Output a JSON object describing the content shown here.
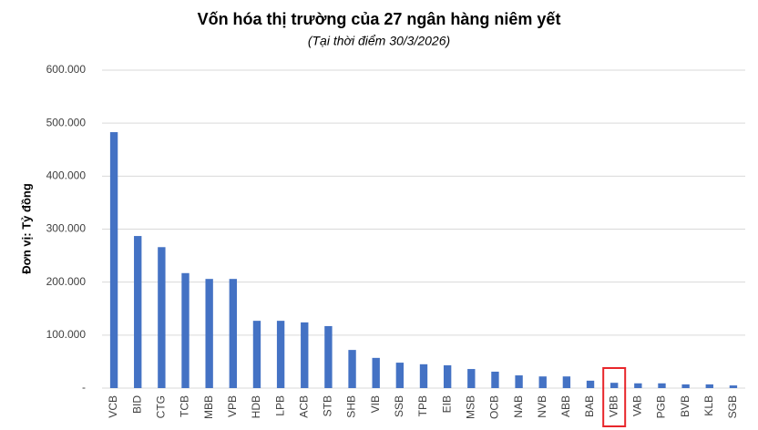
{
  "chart_data": {
    "type": "bar",
    "title": "Vốn hóa thị trường của 27 ngân hàng niêm yết",
    "subtitle": "(Tại thời điểm 30/3/2026)",
    "y_label": "Đơn vị: Tỷ đồng",
    "categories": [
      "VCB",
      "BID",
      "CTG",
      "TCB",
      "MBB",
      "VPB",
      "HDB",
      "LPB",
      "ACB",
      "STB",
      "SHB",
      "VIB",
      "SSB",
      "TPB",
      "EIB",
      "MSB",
      "OCB",
      "NAB",
      "NVB",
      "ABB",
      "BAB",
      "VBB",
      "VAB",
      "PGB",
      "BVB",
      "KLB",
      "SGB"
    ],
    "values": [
      483000,
      287000,
      266000,
      217000,
      206000,
      206000,
      127000,
      127000,
      124000,
      117000,
      72000,
      57000,
      48000,
      45000,
      43000,
      36000,
      31000,
      24000,
      22000,
      22000,
      14000,
      10000,
      9000,
      9000,
      7000,
      7000,
      5000
    ],
    "color": "#4472c4",
    "ylim": [
      0,
      600000
    ],
    "yticks": [
      {
        "value": 0,
        "label": "-"
      },
      {
        "value": 100000,
        "label": "100.000"
      },
      {
        "value": 200000,
        "label": "200.000"
      },
      {
        "value": 300000,
        "label": "300.000"
      },
      {
        "value": 400000,
        "label": "400.000"
      },
      {
        "value": 500000,
        "label": "500.000"
      },
      {
        "value": 600000,
        "label": "600.000"
      }
    ],
    "grid": true,
    "highlight": {
      "index": 21,
      "color": "#e8262b"
    }
  }
}
